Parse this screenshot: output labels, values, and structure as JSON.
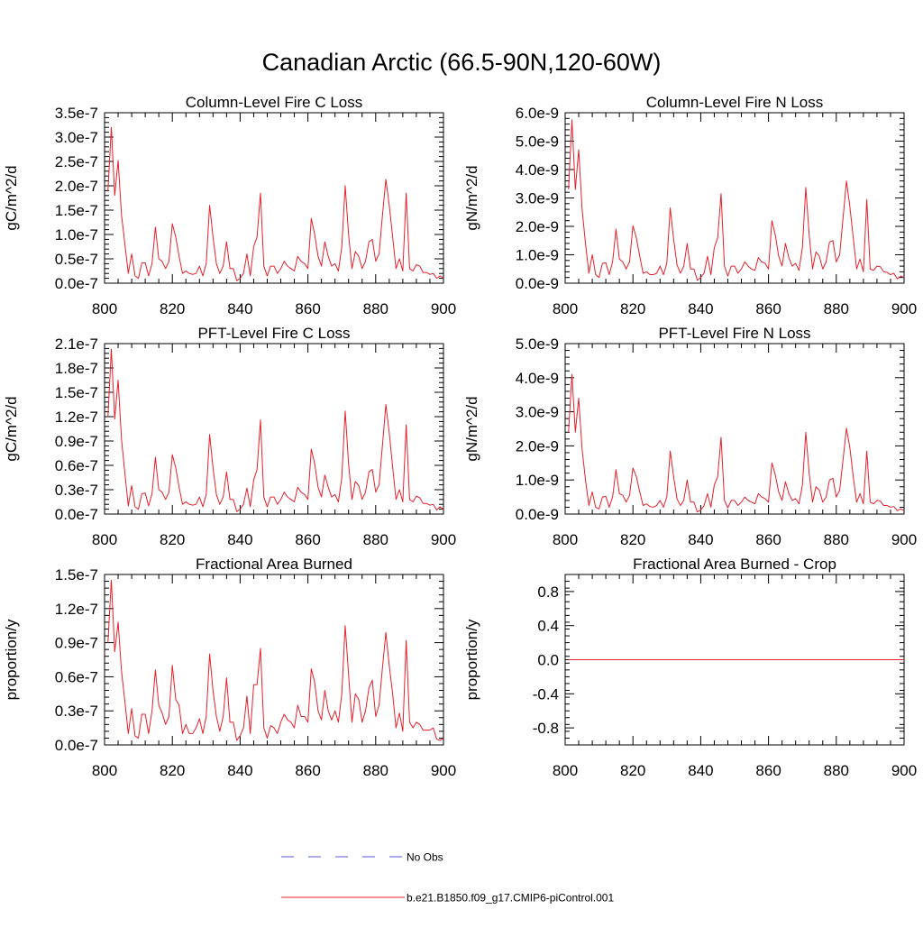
{
  "figure": {
    "title": "Canadian Arctic (66.5-90N,120-60W)"
  },
  "legend": {
    "items": [
      {
        "label": "No Obs",
        "color": "#5a5ad8",
        "dash": true
      },
      {
        "label": "b.e21.B1850.f09_g17.CMIP6-piControl.001",
        "color": "#e8202a",
        "dash": false
      }
    ]
  },
  "chart_data": [
    {
      "type": "line",
      "title": "Column-Level Fire C Loss",
      "ylabel": "gC/m^2/d",
      "xlim": [
        800,
        900
      ],
      "ylim": [
        0,
        3.5e-07
      ],
      "xticks": [
        800,
        820,
        840,
        860,
        880,
        900
      ],
      "xtick_labels": [
        "800",
        "820",
        "840",
        "860",
        "880",
        "900"
      ],
      "yticks": [
        0,
        5e-08,
        1e-07,
        1.5e-07,
        2e-07,
        2.5e-07,
        3e-07,
        3.5e-07
      ],
      "ytick_labels": [
        "0.0e-7",
        "0.5e-7",
        "1.0e-7",
        "1.5e-7",
        "2.0e-7",
        "2.5e-7",
        "3.0e-7",
        "3.5e-7"
      ],
      "x_start": 801,
      "series": [
        {
          "name": "b.e21.B1850.f09_g17.CMIP6-piControl.001",
          "color": "#e8202a",
          "values": [
            1.9e-07,
            3.2e-07,
            1.8e-07,
            2.52e-07,
            1.4e-07,
            8e-08,
            2e-08,
            6e-08,
            1.5e-08,
            1e-08,
            4.2e-08,
            4.2e-08,
            1.5e-08,
            4e-08,
            1.15e-07,
            5e-08,
            4.5e-08,
            3e-08,
            4.5e-08,
            1.22e-07,
            9.5e-08,
            5.5e-08,
            2e-08,
            2.5e-08,
            2e-08,
            1.8e-08,
            2e-08,
            3.5e-08,
            1.5e-08,
            4e-08,
            1.6e-07,
            9.5e-08,
            4e-08,
            2e-08,
            3.5e-08,
            8.5e-08,
            3e-08,
            3e-08,
            5e-09,
            1e-08,
            2e-08,
            6e-08,
            1.5e-08,
            7.5e-08,
            9.5e-08,
            1.85e-07,
            3.5e-08,
            1.5e-08,
            3.5e-08,
            3.5e-08,
            2e-08,
            3e-08,
            4.5e-08,
            3.5e-08,
            3e-08,
            2.5e-08,
            5.5e-08,
            4.5e-08,
            4e-08,
            3e-08,
            1.33e-07,
            1e-07,
            5.5e-08,
            3.5e-08,
            8.5e-08,
            5.5e-08,
            3.5e-08,
            4e-08,
            2.5e-08,
            7.5e-08,
            2e-07,
            1e-07,
            3e-08,
            6.5e-08,
            5.5e-08,
            3e-08,
            4.5e-08,
            8.5e-08,
            9e-08,
            4.5e-08,
            6e-08,
            1.4e-07,
            2.13e-07,
            1.6e-07,
            9.5e-08,
            3e-08,
            5e-08,
            2.5e-08,
            1.85e-07,
            3e-08,
            2.5e-08,
            3.8e-08,
            3.5e-08,
            2.2e-08,
            2.2e-08,
            1.8e-08,
            2e-08,
            1e-08,
            1.5e-08,
            1e-08
          ]
        }
      ]
    },
    {
      "type": "line",
      "title": "Column-Level Fire N Loss",
      "ylabel": "gN/m^2/d",
      "xlim": [
        800,
        900
      ],
      "ylim": [
        0,
        6e-09
      ],
      "xticks": [
        800,
        820,
        840,
        860,
        880,
        900
      ],
      "xtick_labels": [
        "800",
        "820",
        "840",
        "860",
        "880",
        "900"
      ],
      "yticks": [
        0,
        1e-09,
        2e-09,
        3e-09,
        4e-09,
        5e-09,
        6e-09
      ],
      "ytick_labels": [
        "0.0e-9",
        "1.0e-9",
        "2.0e-9",
        "3.0e-9",
        "4.0e-9",
        "5.0e-9",
        "6.0e-9"
      ],
      "x_start": 801,
      "series": [
        {
          "name": "b.e21.B1850.f09_g17.CMIP6-piControl.001",
          "color": "#e8202a",
          "values": [
            3.3e-09,
            5.75e-09,
            3.3e-09,
            4.7e-09,
            2.6e-09,
            1.4e-09,
            3.5e-10,
            1e-09,
            3e-10,
            2e-10,
            7e-10,
            7.2e-10,
            3e-10,
            7.5e-10,
            1.9e-09,
            8.5e-10,
            7.5e-10,
            5e-10,
            7.5e-10,
            2.02e-09,
            1.6e-09,
            9.5e-10,
            3.5e-10,
            4e-10,
            3e-10,
            3e-10,
            3.5e-10,
            6e-10,
            3e-10,
            7e-10,
            2.65e-09,
            1.55e-09,
            6.5e-10,
            3.5e-10,
            6e-10,
            1.4e-09,
            5e-10,
            5e-10,
            1e-10,
            2e-10,
            3.5e-10,
            9.5e-10,
            3e-10,
            1.25e-09,
            1.6e-09,
            3.15e-09,
            6e-10,
            2.5e-10,
            6e-10,
            6e-10,
            3.5e-10,
            5e-10,
            7.5e-10,
            6e-10,
            5e-10,
            4.5e-10,
            9e-10,
            7.5e-10,
            7e-10,
            5e-10,
            2.2e-09,
            1.7e-09,
            9.5e-10,
            6e-10,
            1.4e-09,
            9e-10,
            6e-10,
            7e-10,
            4.5e-10,
            1.25e-09,
            3.37e-09,
            1.7e-09,
            5e-10,
            1.1e-09,
            9.5e-10,
            5e-10,
            7.5e-10,
            1.45e-09,
            1.5e-09,
            7.5e-10,
            1e-09,
            2.3e-09,
            3.6e-09,
            2.7e-09,
            1.6e-09,
            5e-10,
            8.5e-10,
            4e-10,
            2.95e-09,
            5e-10,
            4.5e-10,
            6e-10,
            5.8e-10,
            4e-10,
            3.8e-10,
            3e-10,
            3.5e-10,
            1.5e-10,
            2.5e-10,
            2e-10
          ]
        }
      ]
    },
    {
      "type": "line",
      "title": "PFT-Level Fire C Loss",
      "ylabel": "gC/m^2/d",
      "xlim": [
        800,
        900
      ],
      "ylim": [
        0,
        2.1e-07
      ],
      "xticks": [
        800,
        820,
        840,
        860,
        880,
        900
      ],
      "xtick_labels": [
        "800",
        "820",
        "840",
        "860",
        "880",
        "900"
      ],
      "yticks": [
        0,
        3e-08,
        6e-08,
        9e-08,
        1.2e-07,
        1.5e-07,
        1.8e-07,
        2.1e-07
      ],
      "ytick_labels": [
        "0.0e-7",
        "0.3e-7",
        "0.6e-7",
        "0.9e-7",
        "1.2e-7",
        "1.5e-7",
        "1.8e-7",
        "2.1e-7"
      ],
      "x_start": 801,
      "series": [
        {
          "name": "b.e21.B1850.f09_g17.CMIP6-piControl.001",
          "color": "#e8202a",
          "values": [
            1.2e-07,
            2.03e-07,
            1.17e-07,
            1.65e-07,
            9.2e-08,
            5e-08,
            1e-08,
            3.5e-08,
            9e-09,
            6e-09,
            2.5e-08,
            2.6e-08,
            1e-08,
            2.5e-08,
            7e-08,
            3e-08,
            2.7e-08,
            1.8e-08,
            2.7e-08,
            7.3e-08,
            5.7e-08,
            3.3e-08,
            1.2e-08,
            1.5e-08,
            1.2e-08,
            1.1e-08,
            1.2e-08,
            2.1e-08,
            9e-09,
            2.4e-08,
            9.8e-08,
            5.7e-08,
            2.4e-08,
            1.2e-08,
            2.1e-08,
            5.2e-08,
            1.8e-08,
            1.8e-08,
            3e-09,
            6e-09,
            1.2e-08,
            3.2e-08,
            9e-09,
            4.2e-08,
            5.5e-08,
            1.16e-07,
            2.1e-08,
            9e-09,
            2.1e-08,
            2.1e-08,
            1.2e-08,
            1.8e-08,
            2.7e-08,
            2.1e-08,
            1.8e-08,
            1.5e-08,
            3.3e-08,
            2.7e-08,
            2.4e-08,
            1.8e-08,
            8e-08,
            6.2e-08,
            3.3e-08,
            2.1e-08,
            4.8e-08,
            3.3e-08,
            2.1e-08,
            2.4e-08,
            1.5e-08,
            4.5e-08,
            1.27e-07,
            6.2e-08,
            1.8e-08,
            4e-08,
            3.5e-08,
            1.8e-08,
            2.7e-08,
            5.2e-08,
            5.5e-08,
            2.7e-08,
            3.6e-08,
            8.5e-08,
            1.35e-07,
            1e-07,
            5.8e-08,
            1.8e-08,
            3e-08,
            1.5e-08,
            1.1e-07,
            1.8e-08,
            1.5e-08,
            2.2e-08,
            2e-08,
            1.3e-08,
            1.3e-08,
            1.1e-08,
            1.2e-08,
            5e-09,
            9e-09,
            6e-09
          ]
        }
      ]
    },
    {
      "type": "line",
      "title": "PFT-Level Fire N Loss",
      "ylabel": "gN/m^2/d",
      "xlim": [
        800,
        900
      ],
      "ylim": [
        0,
        5e-09
      ],
      "xticks": [
        800,
        820,
        840,
        860,
        880,
        900
      ],
      "xtick_labels": [
        "800",
        "820",
        "840",
        "860",
        "880",
        "900"
      ],
      "yticks": [
        0,
        1e-09,
        2e-09,
        3e-09,
        4e-09,
        5e-09
      ],
      "ytick_labels": [
        "0.0e-9",
        "1.0e-9",
        "2.0e-9",
        "3.0e-9",
        "4.0e-9",
        "5.0e-9"
      ],
      "x_start": 801,
      "series": [
        {
          "name": "b.e21.B1850.f09_g17.CMIP6-piControl.001",
          "color": "#e8202a",
          "values": [
            2.4e-09,
            4.1e-09,
            2.4e-09,
            3.4e-09,
            1.9e-09,
            1e-09,
            2.5e-10,
            6.5e-10,
            2e-10,
            1.5e-10,
            5e-10,
            5.2e-10,
            2e-10,
            5e-10,
            1.3e-09,
            6e-10,
            5.5e-10,
            3.5e-10,
            5.5e-10,
            1.35e-09,
            1.1e-09,
            6.5e-10,
            2.5e-10,
            3e-10,
            2.2e-10,
            2e-10,
            2.5e-10,
            4e-10,
            2e-10,
            5e-10,
            1.85e-09,
            1.1e-09,
            4.5e-10,
            2.5e-10,
            4e-10,
            1e-09,
            3.5e-10,
            3.5e-10,
            6e-11,
            1.2e-10,
            2.5e-10,
            6e-10,
            2e-10,
            8.5e-10,
            1.1e-09,
            2.25e-09,
            4e-10,
            1.8e-10,
            4e-10,
            4e-10,
            2.5e-10,
            3.5e-10,
            5e-10,
            4e-10,
            3.5e-10,
            3e-10,
            6e-10,
            5e-10,
            4.5e-10,
            3.5e-10,
            1.5e-09,
            1.15e-09,
            6.5e-10,
            4e-10,
            9.5e-10,
            6e-10,
            4e-10,
            4.5e-10,
            3e-10,
            8.5e-10,
            2.4e-09,
            1.2e-09,
            3.5e-10,
            8e-10,
            7e-10,
            3.5e-10,
            5e-10,
            1e-09,
            1.05e-09,
            5e-10,
            7e-10,
            1.6e-09,
            2.52e-09,
            1.95e-09,
            1.1e-09,
            3.5e-10,
            6e-10,
            3e-10,
            1.85e-09,
            3.5e-10,
            3e-10,
            4e-10,
            3.8e-10,
            2.5e-10,
            2.5e-10,
            2e-10,
            2.2e-10,
            1e-10,
            1.5e-10,
            1e-10
          ]
        }
      ]
    },
    {
      "type": "line",
      "title": "Fractional Area Burned",
      "ylabel": "proportion/y",
      "xlim": [
        800,
        900
      ],
      "ylim": [
        0,
        1.5e-07
      ],
      "xticks": [
        800,
        820,
        840,
        860,
        880,
        900
      ],
      "xtick_labels": [
        "800",
        "820",
        "840",
        "860",
        "880",
        "900"
      ],
      "yticks": [
        0,
        3e-08,
        6e-08,
        9e-08,
        1.2e-07,
        1.5e-07
      ],
      "ytick_labels": [
        "0.0e-7",
        "0.3e-7",
        "0.6e-7",
        "0.9e-7",
        "1.2e-7",
        "1.5e-7"
      ],
      "x_start": 801,
      "series": [
        {
          "name": "b.e21.B1850.f09_g17.CMIP6-piControl.001",
          "color": "#e8202a",
          "values": [
            9e-08,
            1.45e-07,
            8.2e-08,
            1.08e-07,
            6.5e-08,
            3.8e-08,
            1e-08,
            3.2e-08,
            8e-09,
            6e-09,
            2.7e-08,
            2.7e-08,
            1e-08,
            3e-08,
            6.6e-08,
            3.5e-08,
            2.8e-08,
            1.8e-08,
            2.5e-08,
            7e-08,
            4e-08,
            3.5e-08,
            1e-08,
            1.8e-08,
            1e-08,
            1e-08,
            1.5e-08,
            2.3e-08,
            1e-08,
            2.5e-08,
            8e-08,
            4.8e-08,
            2.5e-08,
            1.2e-08,
            2.5e-08,
            5.9e-08,
            2e-08,
            2e-08,
            4e-09,
            8e-09,
            1.5e-08,
            4.3e-08,
            1e-08,
            5.3e-08,
            5.3e-08,
            8.5e-08,
            1.5e-08,
            6e-09,
            1.7e-08,
            1.5e-08,
            1e-08,
            2e-08,
            2.7e-08,
            2.2e-08,
            2e-08,
            1.5e-08,
            3.5e-08,
            2.5e-08,
            2.5e-08,
            2e-08,
            6.7e-08,
            5.5e-08,
            3e-08,
            2.2e-08,
            4.8e-08,
            3e-08,
            2.2e-08,
            3e-08,
            2e-08,
            4.5e-08,
            1.05e-07,
            6.2e-08,
            2e-08,
            4.5e-08,
            4e-08,
            2e-08,
            3e-08,
            5e-08,
            5.7e-08,
            2.5e-08,
            3.5e-08,
            6.8e-08,
            9.9e-08,
            7e-08,
            4.5e-08,
            1.5e-08,
            2.8e-08,
            1.2e-08,
            9.2e-08,
            2e-08,
            1.5e-08,
            2e-08,
            1.8e-08,
            1.3e-08,
            1.3e-08,
            1.3e-08,
            1.5e-08,
            5e-09,
            4e-09,
            6e-09
          ]
        }
      ]
    },
    {
      "type": "line",
      "title": "Fractional Area Burned - Crop",
      "ylabel": "proportion/y",
      "xlim": [
        800,
        900
      ],
      "ylim": [
        -1.0,
        1.0
      ],
      "xticks": [
        800,
        820,
        840,
        860,
        880,
        900
      ],
      "xtick_labels": [
        "800",
        "820",
        "840",
        "860",
        "880",
        "900"
      ],
      "yticks": [
        -0.8,
        -0.4,
        0.0,
        0.4,
        0.8
      ],
      "ytick_labels": [
        "-0.8",
        "-0.4",
        "0.0",
        "0.4",
        "0.8"
      ],
      "x_start": 801,
      "series": [
        {
          "name": "b.e21.B1850.f09_g17.CMIP6-piControl.001",
          "color": "#e8202a",
          "values": [
            0,
            0,
            0,
            0,
            0,
            0,
            0,
            0,
            0,
            0,
            0,
            0,
            0,
            0,
            0,
            0,
            0,
            0,
            0,
            0,
            0,
            0,
            0,
            0,
            0,
            0,
            0,
            0,
            0,
            0,
            0,
            0,
            0,
            0,
            0,
            0,
            0,
            0,
            0,
            0,
            0,
            0,
            0,
            0,
            0,
            0,
            0,
            0,
            0,
            0,
            0,
            0,
            0,
            0,
            0,
            0,
            0,
            0,
            0,
            0,
            0,
            0,
            0,
            0,
            0,
            0,
            0,
            0,
            0,
            0,
            0,
            0,
            0,
            0,
            0,
            0,
            0,
            0,
            0,
            0,
            0,
            0,
            0,
            0,
            0,
            0,
            0,
            0,
            0,
            0,
            0,
            0,
            0,
            0,
            0,
            0,
            0,
            0,
            0,
            0
          ]
        }
      ]
    }
  ]
}
